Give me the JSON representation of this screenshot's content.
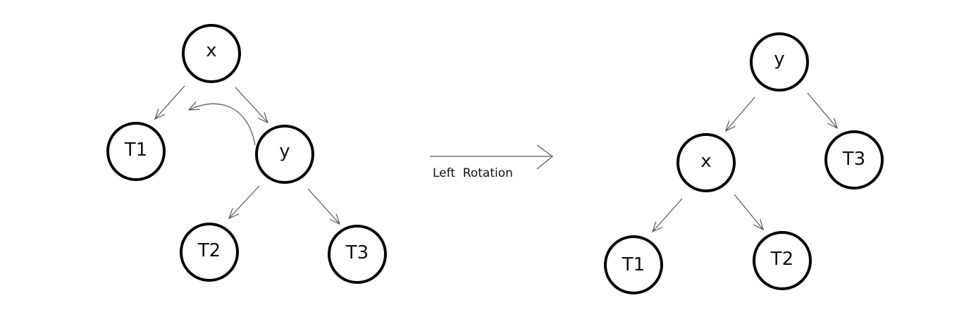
{
  "caption": "Left  Rotation",
  "before": {
    "nodes": [
      {
        "id": "x",
        "label": "x"
      },
      {
        "id": "T1",
        "label": "T1"
      },
      {
        "id": "y",
        "label": "y"
      },
      {
        "id": "T2",
        "label": "T2"
      },
      {
        "id": "T3",
        "label": "T3"
      }
    ],
    "edges": [
      [
        "x",
        "T1"
      ],
      [
        "x",
        "y"
      ],
      [
        "y",
        "T2"
      ],
      [
        "y",
        "T3"
      ]
    ]
  },
  "after": {
    "nodes": [
      {
        "id": "y",
        "label": "y"
      },
      {
        "id": "x",
        "label": "x"
      },
      {
        "id": "T3",
        "label": "T3"
      },
      {
        "id": "T1",
        "label": "T1"
      },
      {
        "id": "T2",
        "label": "T2"
      }
    ],
    "edges": [
      [
        "y",
        "x"
      ],
      [
        "y",
        "T3"
      ],
      [
        "x",
        "T1"
      ],
      [
        "x",
        "T2"
      ]
    ]
  },
  "colors": {
    "stroke": "#000000",
    "edge": "#555555",
    "background": "#ffffff"
  }
}
